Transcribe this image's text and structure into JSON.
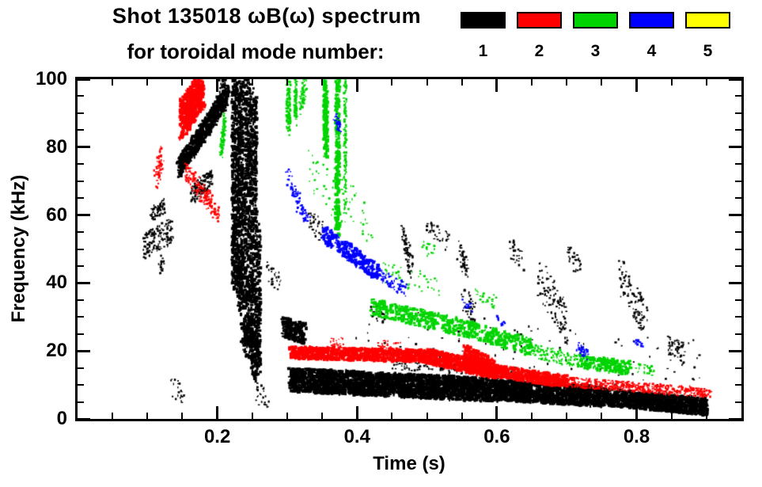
{
  "chart_data": {
    "type": "scatter",
    "title": "Shot 135018 ωB(ω) spectrum",
    "subtitle": "for toroidal mode number:",
    "xlabel": "Time (s)",
    "ylabel": "Frequency (kHz)",
    "xlim": [
      0,
      0.95
    ],
    "ylim": [
      0,
      100
    ],
    "xticks": [
      {
        "v": 0.2,
        "label": "0.2"
      },
      {
        "v": 0.4,
        "label": "0.4"
      },
      {
        "v": 0.6,
        "label": "0.6"
      },
      {
        "v": 0.8,
        "label": "0.8"
      }
    ],
    "yticks": [
      {
        "v": 0,
        "label": "0"
      },
      {
        "v": 20,
        "label": "20"
      },
      {
        "v": 40,
        "label": "40"
      },
      {
        "v": 60,
        "label": "60"
      },
      {
        "v": 80,
        "label": "80"
      },
      {
        "v": 100,
        "label": "100"
      }
    ],
    "x_minor_step": 0.05,
    "y_minor_step": 5,
    "grid": false,
    "legend_position": "top-right",
    "segment_format": [
      "t_start",
      "t_end",
      "freq_start",
      "freq_end",
      "freq_halfwidth_khz",
      "n_points",
      "point_px",
      "t_jitter"
    ],
    "series": [
      {
        "name": "1",
        "color": "#000000",
        "segments": [
          [
            0.095,
            0.135,
            51,
            55,
            4,
            150,
            2
          ],
          [
            0.105,
            0.125,
            60,
            63,
            2,
            60,
            2
          ],
          [
            0.118,
            0.122,
            44,
            47,
            1.5,
            20,
            2
          ],
          [
            0.135,
            0.155,
            9,
            7,
            3,
            20,
            2
          ],
          [
            0.145,
            0.185,
            74,
            86,
            3,
            380,
            3
          ],
          [
            0.185,
            0.215,
            86,
            96,
            3,
            300,
            3
          ],
          [
            0.165,
            0.192,
            66,
            71,
            2.5,
            140,
            2
          ],
          [
            0.205,
            0.212,
            98,
            100,
            2,
            40,
            2
          ],
          [
            0.225,
            0.225,
            38,
            100,
            2,
            420,
            3,
            0.004
          ],
          [
            0.2335,
            0.2335,
            32,
            100,
            2,
            420,
            3,
            0.004
          ],
          [
            0.2435,
            0.2435,
            22,
            100,
            2,
            450,
            3,
            0.005
          ],
          [
            0.2525,
            0.2525,
            12,
            96,
            2,
            420,
            3,
            0.004
          ],
          [
            0.259,
            0.259,
            14,
            58,
            2,
            160,
            3,
            0.003
          ],
          [
            0.235,
            0.26,
            24,
            20,
            5,
            150,
            3
          ],
          [
            0.255,
            0.272,
            8,
            6,
            3,
            25,
            2
          ],
          [
            0.272,
            0.29,
            44,
            40,
            3,
            30,
            2
          ],
          [
            0.295,
            0.325,
            27,
            25,
            3,
            220,
            3
          ],
          [
            0.33,
            0.35,
            60,
            55,
            3,
            30,
            2
          ],
          [
            0.305,
            0.45,
            11.5,
            10,
            3.5,
            1500,
            3
          ],
          [
            0.45,
            0.6,
            10,
            8.5,
            3.5,
            1500,
            3
          ],
          [
            0.6,
            0.75,
            8.5,
            6.5,
            3,
            1400,
            3
          ],
          [
            0.75,
            0.9,
            6.5,
            3.5,
            2.5,
            1200,
            3
          ],
          [
            0.45,
            0.62,
            16,
            14,
            1.5,
            130,
            2
          ],
          [
            0.42,
            0.44,
            33,
            30,
            3,
            30,
            2
          ],
          [
            0.465,
            0.478,
            55,
            44,
            3,
            70,
            2
          ],
          [
            0.5,
            0.53,
            57,
            52,
            3,
            35,
            2
          ],
          [
            0.545,
            0.558,
            50,
            44,
            3,
            45,
            2
          ],
          [
            0.552,
            0.568,
            36,
            30,
            4,
            45,
            2
          ],
          [
            0.62,
            0.64,
            50,
            46,
            3,
            25,
            2
          ],
          [
            0.66,
            0.7,
            42,
            28,
            6,
            110,
            2
          ],
          [
            0.7,
            0.72,
            48,
            45,
            3,
            30,
            2
          ],
          [
            0.775,
            0.815,
            43,
            28,
            6,
            100,
            2
          ],
          [
            0.845,
            0.868,
            22,
            19,
            3,
            50,
            2
          ],
          [
            0.4,
            0.9,
            26,
            14,
            9,
            120,
            2
          ]
        ]
      },
      {
        "name": "2",
        "color": "#ff0000",
        "segments": [
          [
            0.112,
            0.121,
            70,
            78,
            3,
            70,
            2
          ],
          [
            0.148,
            0.18,
            88,
            97,
            6,
            550,
            3
          ],
          [
            0.155,
            0.192,
            73,
            63,
            3,
            150,
            2
          ],
          [
            0.193,
            0.202,
            62,
            60,
            2,
            30,
            2
          ],
          [
            0.305,
            0.5,
            19.5,
            18.5,
            1.8,
            950,
            3
          ],
          [
            0.5,
            0.6,
            18.5,
            14,
            2.2,
            650,
            3
          ],
          [
            0.555,
            0.595,
            19,
            15,
            3,
            250,
            3
          ],
          [
            0.6,
            0.7,
            14,
            11,
            1.8,
            480,
            3
          ],
          [
            0.7,
            0.88,
            11,
            8,
            1.5,
            420,
            2
          ],
          [
            0.36,
            0.38,
            23,
            22,
            2,
            25,
            2
          ],
          [
            0.43,
            0.46,
            22,
            21,
            1.5,
            30,
            2
          ],
          [
            0.88,
            0.905,
            8,
            7.5,
            1.2,
            60,
            2
          ]
        ]
      },
      {
        "name": "3",
        "color": "#00d400",
        "segments": [
          [
            0.205,
            0.211,
            78,
            88,
            2.5,
            90,
            2,
            0.002
          ],
          [
            0.302,
            0.302,
            85,
            100,
            2,
            130,
            2,
            0.003
          ],
          [
            0.312,
            0.312,
            88,
            100,
            2,
            90,
            2,
            0.002
          ],
          [
            0.32,
            0.326,
            92,
            100,
            3,
            70,
            2
          ],
          [
            0.355,
            0.355,
            78,
            100,
            2,
            160,
            3,
            0.003
          ],
          [
            0.372,
            0.372,
            55,
            100,
            2,
            240,
            3,
            0.003
          ],
          [
            0.383,
            0.383,
            62,
            100,
            2,
            130,
            2,
            0.002
          ],
          [
            0.33,
            0.42,
            72,
            58,
            7,
            70,
            2
          ],
          [
            0.42,
            0.55,
            33,
            27,
            2.5,
            300,
            3
          ],
          [
            0.55,
            0.65,
            27,
            21,
            2.5,
            240,
            3
          ],
          [
            0.65,
            0.72,
            20,
            17,
            2,
            130,
            2
          ],
          [
            0.72,
            0.79,
            17,
            15,
            2,
            180,
            3
          ],
          [
            0.44,
            0.52,
            43,
            39,
            3,
            45,
            2
          ],
          [
            0.57,
            0.6,
            37,
            34,
            2,
            25,
            2
          ],
          [
            0.49,
            0.51,
            51,
            49,
            2,
            15,
            2
          ],
          [
            0.8,
            0.825,
            15,
            14,
            1.5,
            30,
            2
          ]
        ]
      },
      {
        "name": "4",
        "color": "#0000ff",
        "segments": [
          [
            0.3,
            0.316,
            72,
            65,
            2,
            45,
            2
          ],
          [
            0.316,
            0.332,
            63,
            58,
            2,
            35,
            2
          ],
          [
            0.368,
            0.375,
            89,
            85,
            2,
            30,
            2
          ],
          [
            0.35,
            0.43,
            55,
            43,
            2.5,
            280,
            3
          ],
          [
            0.43,
            0.47,
            42.5,
            38,
            2,
            70,
            2
          ],
          [
            0.55,
            0.565,
            34,
            33,
            1.5,
            15,
            2
          ],
          [
            0.6,
            0.612,
            29,
            28,
            1.5,
            12,
            2
          ],
          [
            0.715,
            0.732,
            21,
            19,
            1.5,
            40,
            2
          ],
          [
            0.795,
            0.808,
            23,
            22,
            1,
            15,
            2
          ]
        ]
      },
      {
        "name": "5",
        "color": "#ffff00",
        "segments": []
      }
    ]
  }
}
